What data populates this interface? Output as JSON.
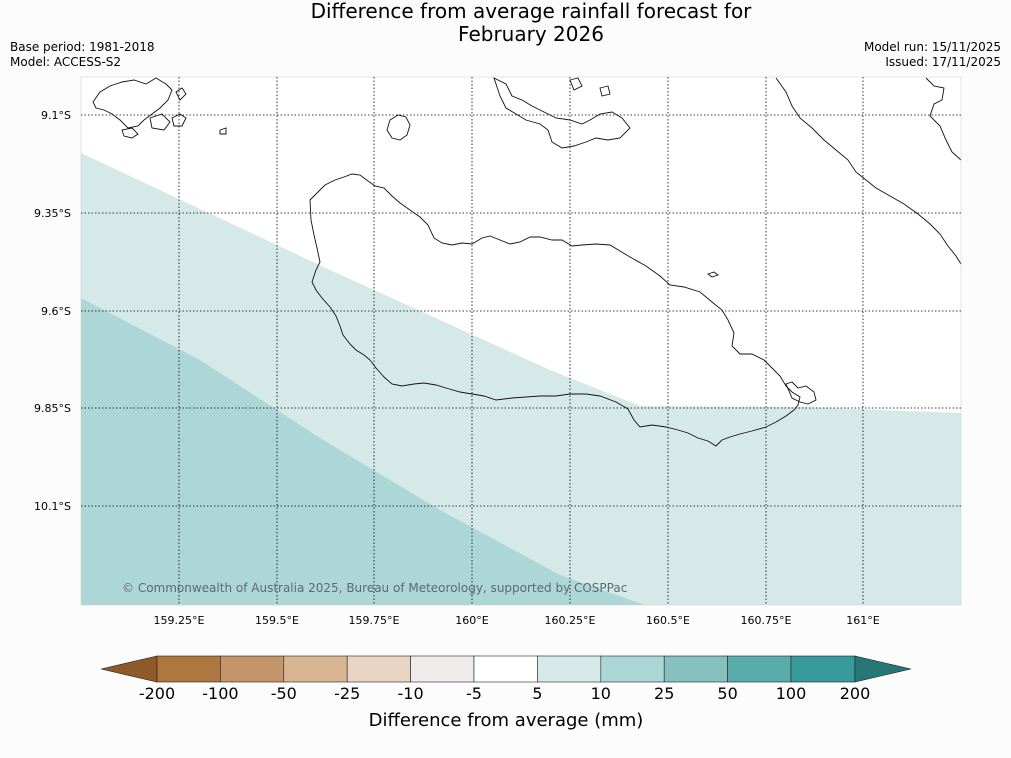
{
  "header": {
    "title_line1": "Difference from average rainfall forecast for",
    "title_line2": "February 2026",
    "base_period": "Base period: 1981-2018",
    "model": "Model: ACCESS-S2",
    "model_run": "Model run: 15/11/2025",
    "issued": "Issued: 17/11/2025"
  },
  "map": {
    "lat_labels": [
      "9.1°S",
      "9.35°S",
      "9.6°S",
      "9.85°S",
      "10.1°S"
    ],
    "lon_labels": [
      "159.25°E",
      "159.5°E",
      "159.75°E",
      "160°E",
      "160.25°E",
      "160.5°E",
      "160.75°E",
      "161°E"
    ],
    "copyright": "© Commonwealth of Australia 2025, Bureau of Meteorology, supported by COSPPac",
    "fill_categories": [
      "5 to 10",
      "10 to 25"
    ]
  },
  "colorbar": {
    "title": "Difference from average (mm)",
    "labels": [
      "-200",
      "-100",
      "-50",
      "-25",
      "-10",
      "-5",
      "5",
      "10",
      "25",
      "50",
      "100",
      "200"
    ],
    "colors": [
      "#8d5a28",
      "#ae773f",
      "#c4956a",
      "#d8b694",
      "#e8d5c4",
      "#efebe8",
      "#ffffff",
      "#d5e9e8",
      "#abd6d6",
      "#86c1c0",
      "#5aacab",
      "#369b9a",
      "#267776"
    ]
  }
}
